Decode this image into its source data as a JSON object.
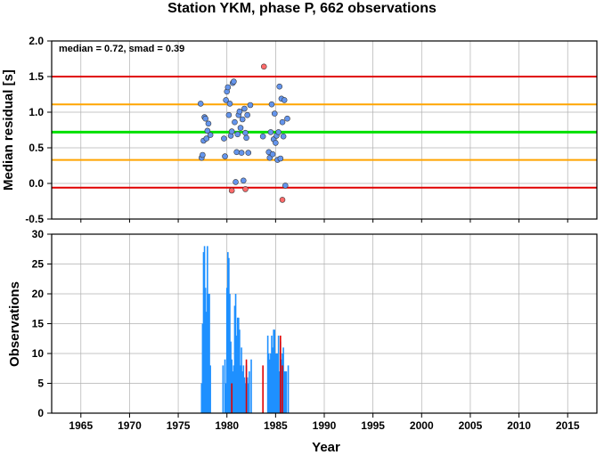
{
  "chart_data": [
    {
      "type": "scatter",
      "title": "Station YKM, phase P, 662 observations",
      "annotation": "median = 0.72, smad = 0.39",
      "xlabel": "",
      "ylabel": "Median residual [s]",
      "xlim": [
        1962,
        2018
      ],
      "ylim": [
        -0.5,
        2.0
      ],
      "xticks": [
        1965,
        1970,
        1975,
        1980,
        1985,
        1990,
        1995,
        2000,
        2005,
        2010,
        2015
      ],
      "yticks": [
        "-0.5",
        "0.0",
        "0.5",
        "1.0",
        "1.5",
        "2.0"
      ],
      "grid": true,
      "reference_lines": [
        {
          "y": 0.72,
          "color": "#00e000",
          "role": "median"
        },
        {
          "y": 1.11,
          "color": "#ffa500",
          "role": "median + 1 smad"
        },
        {
          "y": 0.33,
          "color": "#ffa500",
          "role": "median - 1 smad"
        },
        {
          "y": 1.5,
          "color": "#e00000",
          "role": "median + 2 smad"
        },
        {
          "y": -0.06,
          "color": "#e00000",
          "role": "median - 2 smad"
        }
      ],
      "series": [
        {
          "color": "#6495ed",
          "points": [
            [
              1977.3,
              1.12
            ],
            [
              1977.4,
              0.36
            ],
            [
              1977.5,
              0.4
            ],
            [
              1977.6,
              0.6
            ],
            [
              1977.7,
              0.93
            ],
            [
              1977.8,
              0.91
            ],
            [
              1977.9,
              0.63
            ],
            [
              1978.0,
              0.74
            ],
            [
              1978.1,
              0.84
            ],
            [
              1978.3,
              0.68
            ],
            [
              1979.7,
              0.63
            ],
            [
              1979.8,
              0.38
            ],
            [
              1979.9,
              1.17
            ],
            [
              1980.0,
              1.29
            ],
            [
              1980.1,
              1.35
            ],
            [
              1980.2,
              0.96
            ],
            [
              1980.3,
              1.12
            ],
            [
              1980.4,
              0.67
            ],
            [
              1980.5,
              0.73
            ],
            [
              1980.6,
              1.41
            ],
            [
              1980.7,
              1.43
            ],
            [
              1980.8,
              0.86
            ],
            [
              1980.9,
              0.02
            ],
            [
              1981.0,
              0.44
            ],
            [
              1981.1,
              0.69
            ],
            [
              1981.2,
              0.96
            ],
            [
              1981.3,
              1.01
            ],
            [
              1981.4,
              0.78
            ],
            [
              1981.5,
              0.43
            ],
            [
              1981.6,
              0.9
            ],
            [
              1981.7,
              0.04
            ],
            [
              1981.8,
              1.05
            ],
            [
              1981.9,
              0.71
            ],
            [
              1982.0,
              0.64
            ],
            [
              1982.1,
              0.96
            ],
            [
              1982.2,
              0.43
            ],
            [
              1982.4,
              1.1
            ],
            [
              1983.7,
              0.66
            ],
            [
              1984.3,
              0.44
            ],
            [
              1984.4,
              0.36
            ],
            [
              1984.5,
              0.72
            ],
            [
              1984.6,
              1.11
            ],
            [
              1984.7,
              0.41
            ],
            [
              1984.8,
              0.62
            ],
            [
              1984.9,
              0.98
            ],
            [
              1985.0,
              0.57
            ],
            [
              1985.1,
              0.67
            ],
            [
              1985.2,
              0.33
            ],
            [
              1985.3,
              0.72
            ],
            [
              1985.4,
              1.36
            ],
            [
              1985.5,
              0.35
            ],
            [
              1985.6,
              1.19
            ],
            [
              1985.7,
              0.86
            ],
            [
              1985.8,
              0.66
            ],
            [
              1985.9,
              1.17
            ],
            [
              1986.0,
              -0.03
            ],
            [
              1986.2,
              0.91
            ]
          ]
        },
        {
          "color": "#ff6a6a",
          "points": [
            [
              1980.5,
              -0.1
            ],
            [
              1981.9,
              -0.08
            ],
            [
              1983.8,
              1.64
            ],
            [
              1985.7,
              -0.23
            ]
          ]
        }
      ]
    },
    {
      "type": "bar",
      "xlabel": "Year",
      "ylabel": "Observations",
      "xlim": [
        1962,
        2018
      ],
      "ylim": [
        0,
        30
      ],
      "xticks": [
        "1965",
        "1970",
        "1975",
        "1980",
        "1985",
        "1990",
        "1995",
        "2000",
        "2005",
        "2010",
        "2015"
      ],
      "yticks": [
        "0",
        "5",
        "10",
        "15",
        "20",
        "25",
        "30"
      ],
      "grid": true,
      "series": [
        {
          "color": "#1e90ff",
          "x": [
            1977.4,
            1977.5,
            1977.6,
            1977.7,
            1977.8,
            1977.9,
            1978.0,
            1978.1,
            1978.2,
            1978.3,
            1979.6,
            1979.8,
            1979.9,
            1980.0,
            1980.1,
            1980.2,
            1980.3,
            1980.4,
            1980.5,
            1980.6,
            1980.7,
            1980.8,
            1980.9,
            1981.0,
            1981.1,
            1981.2,
            1981.3,
            1981.4,
            1981.5,
            1981.6,
            1981.7,
            1981.8,
            1981.9,
            1982.0,
            1982.1,
            1982.2,
            1982.3,
            1982.5,
            1984.2,
            1984.3,
            1984.4,
            1984.5,
            1984.6,
            1984.7,
            1984.8,
            1984.9,
            1985.0,
            1985.1,
            1985.2,
            1985.3,
            1985.4,
            1985.5,
            1985.6,
            1985.7,
            1985.8,
            1985.9,
            1986.0,
            1986.1,
            1986.3
          ],
          "values": [
            5,
            15,
            27,
            28,
            21,
            17,
            28,
            20,
            20,
            8,
            8,
            9,
            5,
            21,
            27,
            26,
            20,
            12,
            9,
            7,
            8,
            18,
            20,
            13,
            16,
            16,
            14,
            8,
            11,
            7,
            8,
            6,
            5,
            8,
            6,
            5,
            7,
            9,
            13,
            10,
            9,
            10,
            13,
            11,
            14,
            14,
            10,
            10,
            10,
            13,
            7,
            12,
            9,
            10,
            11,
            7,
            7,
            7,
            8
          ]
        },
        {
          "color": "#e00000",
          "x": [
            1980.5,
            1982.0,
            1983.7,
            1985.5,
            1985.7
          ],
          "values": [
            5,
            9,
            8,
            13,
            8
          ]
        }
      ]
    }
  ]
}
